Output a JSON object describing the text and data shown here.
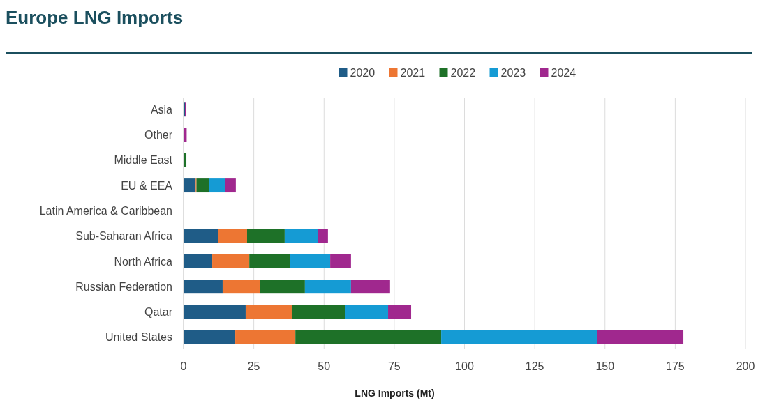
{
  "chart_data": {
    "type": "bar",
    "orientation": "horizontal",
    "stacked": true,
    "title": "Europe LNG Imports",
    "xlabel": "LNG Imports (Mt)",
    "categories": [
      "Asia",
      "Other",
      "Middle East",
      "EU & EEA",
      "Latin America & Caribbean",
      "Sub-Saharan Africa",
      "North Africa",
      "Russian Federation",
      "Qatar",
      "United States"
    ],
    "series": [
      {
        "name": "2020",
        "color": "#1f5c87",
        "values": [
          0.5,
          null,
          null,
          4.3,
          null,
          12.4,
          10.2,
          13.9,
          22.1,
          18.4
        ]
      },
      {
        "name": "2021",
        "color": "#ed7633",
        "values": [
          null,
          null,
          null,
          0.3,
          null,
          10.2,
          13.2,
          13.4,
          16.4,
          21.4
        ]
      },
      {
        "name": "2022",
        "color": "#1e7128",
        "values": [
          null,
          null,
          1.0,
          4.4,
          null,
          13.4,
          14.6,
          15.9,
          18.9,
          51.9
        ]
      },
      {
        "name": "2023",
        "color": "#159bd4",
        "values": [
          null,
          null,
          null,
          5.7,
          null,
          11.7,
          14.2,
          16.4,
          15.4,
          55.6
        ]
      },
      {
        "name": "2024",
        "color": "#a0288e",
        "values": [
          0.3,
          1.1,
          null,
          3.9,
          null,
          3.7,
          7.4,
          13.9,
          8.2,
          30.6
        ]
      }
    ],
    "xlim": [
      0,
      200
    ],
    "xticks": [
      0,
      25,
      50,
      75,
      100,
      125,
      150,
      175,
      200
    ],
    "grid": "x",
    "legend": "top"
  }
}
